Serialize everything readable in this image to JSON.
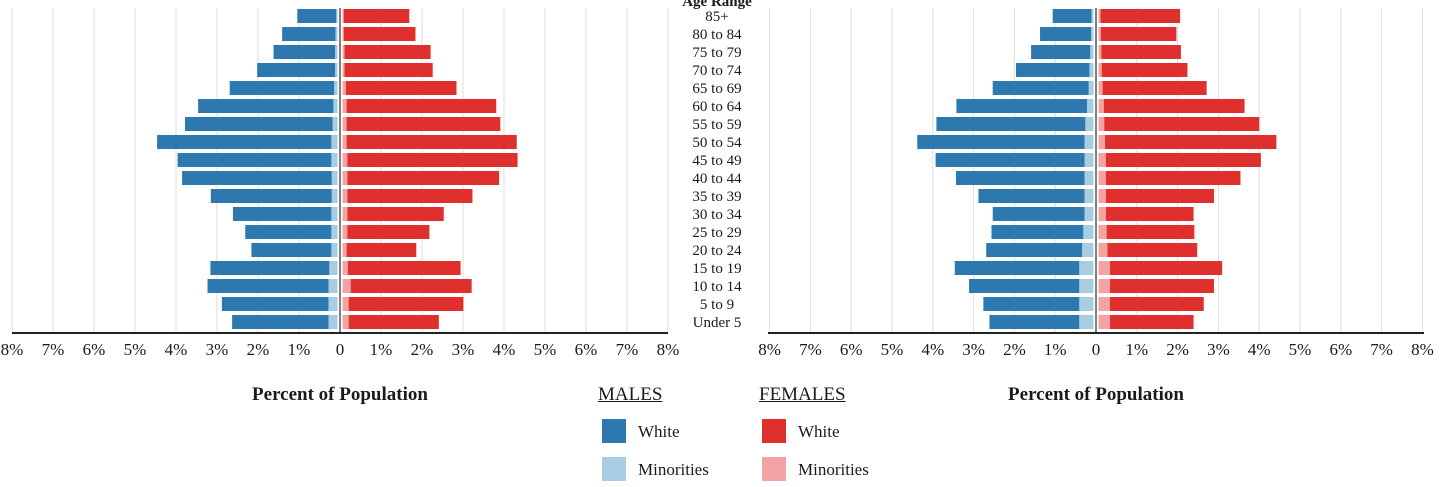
{
  "chart_data": [
    {
      "type": "bar",
      "orientation": "horizontal",
      "layout": "population-pyramid",
      "categories": [
        "Under 5",
        "5 to 9",
        "10 to 14",
        "15 to 19",
        "20 to 24",
        "25 to 29",
        "30 to 34",
        "35 to 39",
        "40 to 44",
        "45 to 49",
        "50 to 54",
        "55 to 59",
        "60 to 64",
        "65 to 69",
        "70 to 74",
        "75 to 79",
        "80 to 84",
        "85+"
      ],
      "category_header": "Age Range",
      "xlabel": "Percent of Population",
      "xlim": [
        -8,
        8
      ],
      "x_ticks": [
        "8%",
        "7%",
        "6%",
        "5%",
        "4%",
        "3%",
        "2%",
        "1%",
        "0",
        "1%",
        "2%",
        "3%",
        "4%",
        "5%",
        "6%",
        "7%",
        "8%"
      ],
      "grid": "vertical",
      "stacked": true,
      "series": [
        {
          "name": "White",
          "group": "MALES",
          "side": "left",
          "color": "#2e78b0",
          "values": [
            2.35,
            2.6,
            2.95,
            2.9,
            1.95,
            2.1,
            2.4,
            2.95,
            3.65,
            3.75,
            4.25,
            3.6,
            3.3,
            2.55,
            1.9,
            1.5,
            1.3,
            0.95
          ]
        },
        {
          "name": "Minorities",
          "group": "MALES",
          "side": "left",
          "color": "#a6cde1",
          "values": [
            0.22,
            0.22,
            0.22,
            0.2,
            0.15,
            0.15,
            0.15,
            0.14,
            0.14,
            0.15,
            0.15,
            0.12,
            0.1,
            0.08,
            0.06,
            0.06,
            0.05,
            0.03
          ]
        },
        {
          "name": "White",
          "group": "FEMALES",
          "side": "right",
          "color": "#e0302e",
          "values": [
            2.2,
            2.8,
            2.95,
            2.75,
            1.7,
            2.0,
            2.35,
            3.05,
            3.7,
            4.15,
            4.15,
            3.75,
            3.65,
            2.7,
            2.15,
            2.1,
            1.75,
            1.6
          ]
        },
        {
          "name": "Minorities",
          "group": "FEMALES",
          "side": "right",
          "color": "#f2a3a3",
          "values": [
            0.15,
            0.15,
            0.2,
            0.13,
            0.1,
            0.12,
            0.12,
            0.12,
            0.12,
            0.12,
            0.1,
            0.1,
            0.1,
            0.08,
            0.05,
            0.05,
            0.03,
            0.03
          ]
        }
      ]
    },
    {
      "type": "bar",
      "orientation": "horizontal",
      "layout": "population-pyramid",
      "categories": [
        "Under 5",
        "5 to 9",
        "10 to 14",
        "15 to 19",
        "20 to 24",
        "25 to 29",
        "30 to 34",
        "35 to 39",
        "40 to 44",
        "45 to 49",
        "50 to 54",
        "55 to 59",
        "60 to 64",
        "65 to 69",
        "70 to 74",
        "75 to 79",
        "80 to 84",
        "85+"
      ],
      "xlabel": "Percent of Population",
      "xlim": [
        -8,
        8
      ],
      "x_ticks": [
        "8%",
        "7%",
        "6%",
        "5%",
        "4%",
        "3%",
        "2%",
        "1%",
        "0",
        "1%",
        "2%",
        "3%",
        "4%",
        "5%",
        "6%",
        "7%",
        "8%"
      ],
      "grid": "vertical",
      "stacked": true,
      "series": [
        {
          "name": "White",
          "group": "MALES",
          "side": "left",
          "color": "#2e78b0",
          "values": [
            2.2,
            2.35,
            2.7,
            3.05,
            2.35,
            2.25,
            2.25,
            2.6,
            3.15,
            3.65,
            4.1,
            3.65,
            3.2,
            2.35,
            1.8,
            1.45,
            1.25,
            0.95
          ]
        },
        {
          "name": "Minorities",
          "group": "MALES",
          "side": "left",
          "color": "#a6cde1",
          "values": [
            0.35,
            0.35,
            0.35,
            0.35,
            0.28,
            0.25,
            0.22,
            0.22,
            0.22,
            0.22,
            0.22,
            0.2,
            0.16,
            0.12,
            0.1,
            0.08,
            0.06,
            0.05
          ]
        },
        {
          "name": "White",
          "group": "FEMALES",
          "side": "right",
          "color": "#e0302e",
          "values": [
            2.05,
            2.3,
            2.55,
            2.75,
            2.2,
            2.15,
            2.15,
            2.65,
            3.3,
            3.8,
            4.2,
            3.8,
            3.45,
            2.55,
            2.1,
            1.95,
            1.85,
            1.95
          ]
        },
        {
          "name": "Minorities",
          "group": "FEMALES",
          "side": "right",
          "color": "#f2a3a3",
          "values": [
            0.28,
            0.28,
            0.28,
            0.28,
            0.22,
            0.2,
            0.18,
            0.18,
            0.18,
            0.18,
            0.16,
            0.14,
            0.13,
            0.1,
            0.08,
            0.07,
            0.06,
            0.05
          ]
        }
      ]
    }
  ],
  "legend": {
    "males_title": "MALES",
    "females_title": "FEMALES",
    "males_white": "White",
    "males_minorities": "Minorities",
    "females_white": "White",
    "females_minorities": "Minorities",
    "colors": {
      "male_white": "#2e78b0",
      "male_minorities": "#a6cde1",
      "female_white": "#e0302e",
      "female_minorities": "#f2a3a3"
    }
  }
}
